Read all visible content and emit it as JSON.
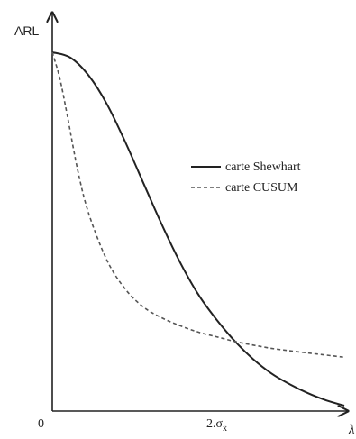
{
  "chart_data": {
    "type": "line",
    "xlabel": "λ",
    "ylabel": "ARL",
    "x_ticks": [
      {
        "x": 0,
        "label": "0"
      },
      {
        "x": 2,
        "label": "2.σ",
        "subscript": "x̄"
      }
    ],
    "xlim": [
      0,
      4.05
    ],
    "ylim": [
      0,
      100
    ],
    "grid": false,
    "legend_position": "center-right",
    "series": [
      {
        "name": "carte Shewhart",
        "style": "solid",
        "color": "#222222",
        "x": [
          0,
          0.25,
          0.5,
          0.75,
          1.0,
          1.25,
          1.5,
          1.75,
          2.0,
          2.25,
          2.5,
          2.75,
          3.0,
          3.25,
          3.5,
          3.75,
          4.0
        ],
        "y": [
          100,
          98.5,
          93.5,
          85.5,
          75,
          63.5,
          52,
          41.5,
          32.5,
          25.5,
          19.5,
          14.5,
          10.5,
          7.5,
          5,
          3,
          1.5
        ]
      },
      {
        "name": "carte CUSUM",
        "style": "dashed",
        "color": "#555555",
        "x": [
          0,
          0.1,
          0.2,
          0.35,
          0.5,
          0.75,
          1.0,
          1.25,
          1.5,
          1.75,
          2.0,
          2.25,
          2.5,
          2.75,
          3.0,
          3.25,
          3.5,
          3.75,
          4.0
        ],
        "y": [
          100,
          93,
          83,
          67,
          55,
          42,
          34,
          29,
          26,
          23.8,
          22,
          20.7,
          19.4,
          18.4,
          17.5,
          16.8,
          16.2,
          15.6,
          15
        ]
      }
    ]
  }
}
